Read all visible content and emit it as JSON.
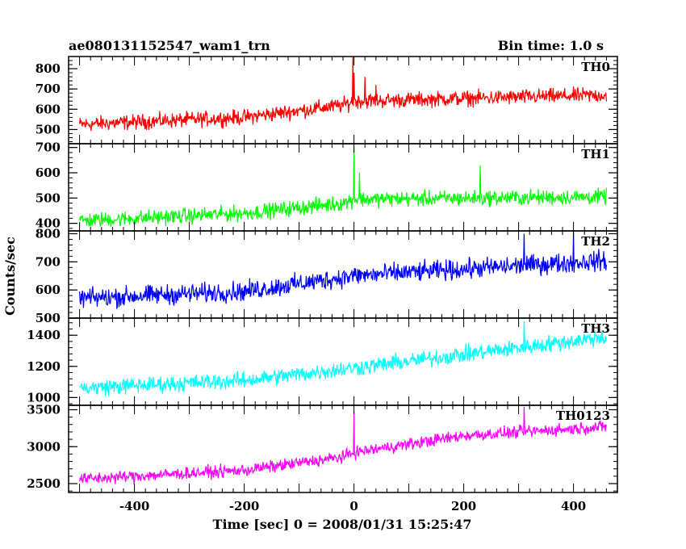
{
  "header": {
    "title": "ae080131152547_wam1_trn",
    "bin_time": "Bin time: 1.0 s"
  },
  "chart_data": {
    "type": "line",
    "xlabel": "Time [sec] 0 = 2008/01/31 15:25:47",
    "ylabel": "Counts/sec",
    "xlim": [
      -520,
      480
    ],
    "x_ticks": [
      -400,
      -200,
      0,
      200,
      400
    ],
    "x_range": [
      -500,
      460
    ],
    "panels": [
      {
        "name": "TH0",
        "color": "#ff0000",
        "ylim": [
          430,
          860
        ],
        "yticks": [
          500,
          600,
          700,
          800
        ],
        "trend": [
          [
            -500,
            525
          ],
          [
            -200,
            560
          ],
          [
            -20,
            620
          ],
          [
            0,
            640
          ],
          [
            460,
            670
          ]
        ],
        "noise": 32,
        "spikes": [
          [
            -2,
            860
          ],
          [
            0,
            780
          ],
          [
            20,
            760
          ],
          [
            40,
            720
          ]
        ]
      },
      {
        "name": "TH1",
        "color": "#00ff00",
        "ylim": [
          370,
          715
        ],
        "yticks": [
          400,
          500,
          600,
          700
        ],
        "trend": [
          [
            -500,
            410
          ],
          [
            -200,
            440
          ],
          [
            -20,
            480
          ],
          [
            0,
            495
          ],
          [
            460,
            505
          ]
        ],
        "noise": 26,
        "spikes": [
          [
            0,
            715
          ],
          [
            10,
            600
          ],
          [
            230,
            630
          ]
        ]
      },
      {
        "name": "TH2",
        "color": "#0000ff",
        "ylim": [
          500,
          810
        ],
        "yticks": [
          500,
          600,
          700,
          800
        ],
        "trend": [
          [
            -500,
            570
          ],
          [
            -200,
            595
          ],
          [
            0,
            650
          ],
          [
            460,
            705
          ]
        ],
        "noise": 30,
        "spikes": [
          [
            310,
            800
          ],
          [
            400,
            805
          ]
        ]
      },
      {
        "name": "TH3",
        "color": "#00ffff",
        "ylim": [
          950,
          1510
        ],
        "yticks": [
          1000,
          1200,
          1400
        ],
        "trend": [
          [
            -500,
            1060
          ],
          [
            -200,
            1110
          ],
          [
            0,
            1190
          ],
          [
            460,
            1390
          ]
        ],
        "noise": 45,
        "spikes": [
          [
            310,
            1490
          ]
        ]
      },
      {
        "name": "TH0123",
        "color": "#ff00ff",
        "ylim": [
          2380,
          3560
        ],
        "yticks": [
          2500,
          3000,
          3500
        ],
        "trend": [
          [
            -500,
            2560
          ],
          [
            -200,
            2680
          ],
          [
            -20,
            2860
          ],
          [
            0,
            2920
          ],
          [
            200,
            3150
          ],
          [
            460,
            3270
          ]
        ],
        "noise": 70,
        "spikes": [
          [
            0,
            3480
          ],
          [
            310,
            3540
          ]
        ]
      }
    ]
  }
}
